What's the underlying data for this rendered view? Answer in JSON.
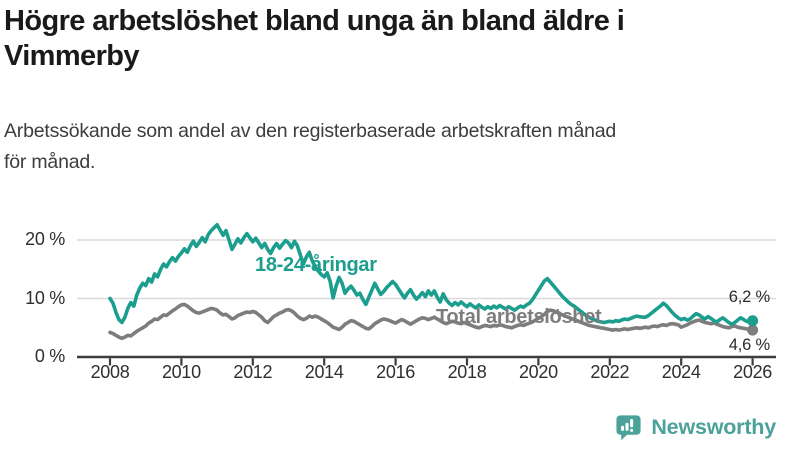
{
  "header": {
    "title_lines": [
      "Högre arbetslöshet bland unga än bland äldre i",
      "Vimmerby"
    ],
    "subtitle_lines": [
      "Arbetssökande som andel av den registerbaserade arbetskraften månad",
      "för månad."
    ]
  },
  "branding": {
    "logo_text": "Newsworthy",
    "logo_color": "#4ba29b"
  },
  "colors": {
    "youth_line": "#1b9e8e",
    "total_line": "#7d7d7d",
    "axis": "#3c3c3c",
    "gridline": "#d9d9d9",
    "text": "#2f2f2f"
  },
  "chart_data": {
    "type": "line",
    "x_axis": {
      "start_year": 2008,
      "interval_months": 1,
      "tick_years": [
        2008,
        2010,
        2012,
        2014,
        2016,
        2018,
        2020,
        2022,
        2024,
        2026
      ]
    },
    "y_axis": {
      "ticks": [
        {
          "value": 0,
          "label": "0 %"
        },
        {
          "value": 10,
          "label": "10 %"
        },
        {
          "value": 20,
          "label": "20 %"
        }
      ],
      "range": [
        0,
        24
      ]
    },
    "series": [
      {
        "name": "18-24-åringar",
        "color": "#1b9e8e",
        "end_label": "6,2 %",
        "end_value": 6.2,
        "values": [
          10.0,
          9.2,
          7.6,
          6.4,
          5.9,
          6.8,
          8.3,
          9.3,
          8.7,
          10.6,
          11.8,
          12.6,
          12.2,
          13.4,
          12.8,
          14.2,
          13.7,
          15.0,
          15.9,
          15.4,
          16.3,
          17.0,
          16.4,
          17.2,
          17.8,
          18.5,
          17.9,
          19.0,
          19.8,
          18.9,
          19.6,
          20.4,
          19.7,
          20.9,
          21.6,
          22.1,
          22.6,
          21.7,
          20.8,
          21.6,
          20.0,
          18.4,
          19.3,
          20.2,
          19.5,
          20.4,
          21.1,
          20.4,
          19.7,
          20.3,
          19.5,
          18.7,
          19.4,
          18.4,
          17.7,
          18.7,
          19.4,
          18.6,
          19.3,
          19.9,
          19.5,
          18.7,
          19.8,
          19.0,
          17.4,
          15.9,
          17.1,
          17.9,
          16.4,
          15.4,
          14.7,
          14.1,
          13.7,
          14.4,
          12.9,
          10.1,
          12.1,
          13.6,
          12.6,
          10.9,
          11.6,
          12.1,
          11.4,
          10.6,
          10.9,
          9.8,
          9.0,
          10.2,
          11.4,
          12.6,
          11.6,
          10.7,
          11.2,
          11.9,
          12.4,
          12.9,
          12.4,
          11.6,
          10.8,
          10.1,
          10.9,
          11.5,
          10.6,
          9.9,
          10.4,
          11.0,
          10.3,
          11.3,
          10.6,
          11.3,
          10.2,
          9.4,
          10.8,
          9.8,
          9.2,
          8.8,
          9.3,
          8.9,
          9.4,
          9.0,
          8.6,
          9.1,
          8.7,
          8.4,
          8.9,
          8.5,
          8.2,
          8.6,
          8.3,
          8.7,
          8.4,
          8.8,
          8.5,
          8.2,
          8.6,
          8.3,
          8.0,
          8.4,
          8.7,
          8.5,
          8.9,
          9.2,
          9.8,
          10.6,
          11.4,
          12.2,
          13.0,
          13.4,
          12.8,
          12.2,
          11.6,
          11.0,
          10.4,
          9.9,
          9.4,
          9.0,
          8.7,
          8.3,
          7.9,
          7.5,
          7.1,
          6.8,
          6.5,
          6.3,
          6.1,
          6.0,
          5.9,
          6.0,
          6.1,
          6.0,
          6.2,
          6.1,
          6.3,
          6.5,
          6.4,
          6.6,
          6.8,
          7.0,
          6.9,
          6.8,
          6.8,
          7.1,
          7.5,
          7.9,
          8.3,
          8.7,
          9.2,
          8.8,
          8.2,
          7.6,
          7.1,
          6.7,
          6.4,
          6.6,
          6.3,
          6.5,
          7.0,
          7.4,
          7.2,
          6.8,
          6.5,
          6.9,
          6.6,
          6.2,
          6.0,
          6.4,
          6.7,
          6.3,
          5.9,
          5.6,
          5.9,
          6.3,
          6.7,
          6.4,
          6.1,
          6.0,
          6.2
        ]
      },
      {
        "name": "Total arbetslöshet",
        "color": "#7d7d7d",
        "end_label": "4,6 %",
        "end_value": 4.6,
        "values": [
          4.2,
          4.0,
          3.7,
          3.4,
          3.2,
          3.4,
          3.7,
          3.6,
          4.0,
          4.4,
          4.7,
          5.0,
          5.3,
          5.8,
          6.1,
          6.5,
          6.4,
          6.8,
          7.2,
          7.1,
          7.5,
          7.9,
          8.2,
          8.6,
          8.9,
          9.0,
          8.7,
          8.3,
          7.9,
          7.6,
          7.5,
          7.7,
          7.9,
          8.1,
          8.3,
          8.2,
          8.0,
          7.5,
          7.2,
          7.3,
          6.9,
          6.5,
          6.7,
          7.1,
          7.3,
          7.5,
          7.7,
          7.6,
          7.8,
          7.6,
          7.2,
          6.8,
          6.2,
          5.9,
          6.4,
          6.9,
          7.2,
          7.5,
          7.7,
          8.0,
          8.1,
          7.9,
          7.5,
          7.0,
          6.6,
          6.4,
          6.6,
          7.0,
          6.8,
          7.0,
          6.8,
          6.5,
          6.2,
          5.9,
          5.5,
          5.1,
          4.9,
          4.7,
          5.1,
          5.6,
          5.9,
          6.2,
          6.1,
          5.8,
          5.5,
          5.2,
          4.9,
          4.8,
          5.2,
          5.7,
          6.0,
          6.3,
          6.5,
          6.4,
          6.2,
          6.0,
          5.8,
          6.1,
          6.4,
          6.2,
          5.9,
          5.6,
          5.9,
          6.2,
          6.5,
          6.7,
          6.6,
          6.4,
          6.6,
          6.8,
          6.5,
          6.2,
          5.9,
          5.7,
          5.9,
          6.1,
          6.0,
          5.8,
          5.7,
          5.9,
          5.7,
          5.5,
          5.3,
          5.1,
          5.0,
          5.2,
          5.4,
          5.3,
          5.2,
          5.4,
          5.3,
          5.5,
          5.4,
          5.2,
          5.1,
          5.0,
          5.2,
          5.4,
          5.5,
          5.4,
          5.6,
          5.8,
          6.0,
          6.3,
          6.6,
          6.9,
          7.3,
          7.8,
          8.0,
          7.9,
          7.7,
          7.5,
          7.2,
          7.0,
          6.8,
          6.6,
          6.4,
          6.2,
          6.0,
          5.8,
          5.6,
          5.4,
          5.3,
          5.2,
          5.1,
          5.0,
          4.9,
          4.8,
          4.7,
          4.6,
          4.7,
          4.6,
          4.7,
          4.8,
          4.7,
          4.8,
          4.9,
          5.0,
          4.9,
          5.0,
          5.1,
          5.0,
          5.2,
          5.3,
          5.2,
          5.4,
          5.5,
          5.4,
          5.6,
          5.7,
          5.6,
          5.5,
          5.1,
          5.3,
          5.5,
          5.8,
          6.0,
          6.2,
          6.3,
          6.1,
          5.9,
          5.8,
          5.7,
          5.8,
          5.6,
          5.4,
          5.2,
          5.1,
          5.0,
          5.2,
          5.3,
          5.1,
          5.0,
          4.9,
          4.8,
          4.7,
          4.6
        ]
      }
    ]
  }
}
